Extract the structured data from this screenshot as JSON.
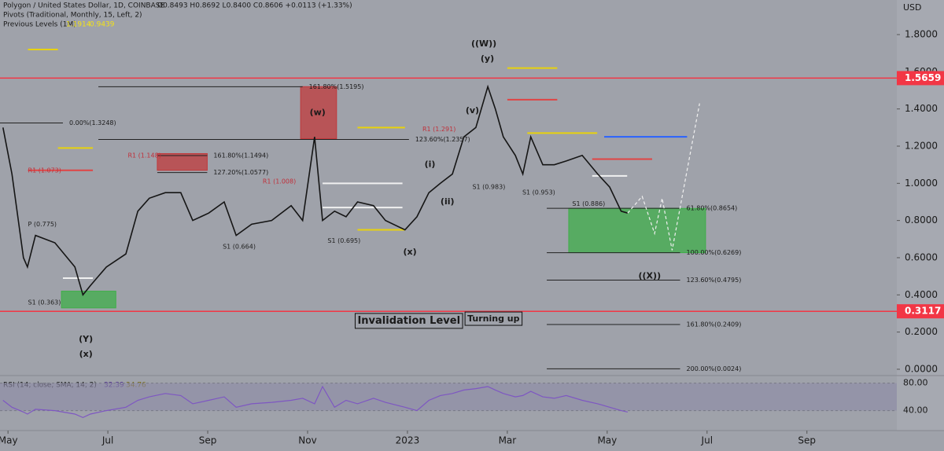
{
  "chart_data": {
    "type": "line",
    "title": "Polygon / United States Dollar, 1D, COINBASE",
    "ohlc": "O0.8493 H0.8692 L0.8400 C0.8606 +0.0113 (+1.33%)",
    "pivots_title": "Pivots (Traditional, Monthly, 15, Left, 2)",
    "prev_levels_title": "Previous Levels (1M)",
    "prev_levels_values": [
      1.1914,
      0.9439
    ],
    "y_axis_label": "USD",
    "xlim": [
      -0.16,
      17.8
    ],
    "xticks": [
      {
        "value": 0,
        "label": "May"
      },
      {
        "value": 2,
        "label": "Jul"
      },
      {
        "value": 4,
        "label": "Sep"
      },
      {
        "value": 6,
        "label": "Nov"
      },
      {
        "value": 8,
        "label": "2023"
      },
      {
        "value": 10,
        "label": "Mar"
      },
      {
        "value": 12,
        "label": "May"
      },
      {
        "value": 14,
        "label": "Jul"
      },
      {
        "value": 16,
        "label": "Sep"
      }
    ],
    "ylim": [
      -0.034,
      1.986
    ],
    "yticks": [
      {
        "value": 0,
        "label": "0.0000"
      },
      {
        "value": 0.2,
        "label": "0.2000"
      },
      {
        "value": 0.4,
        "label": "0.4000"
      },
      {
        "value": 0.6,
        "label": "0.6000"
      },
      {
        "value": 0.8,
        "label": "0.8000"
      },
      {
        "value": 1,
        "label": "1.0000"
      },
      {
        "value": 1.2,
        "label": "1.2000"
      },
      {
        "value": 1.4,
        "label": "1.4000"
      },
      {
        "value": 1.6,
        "label": "1.6000"
      },
      {
        "value": 1.8,
        "label": "1.8000"
      }
    ],
    "x": [
      -0.1,
      0.08,
      0.31,
      0.39,
      0.55,
      0.94,
      1.34,
      1.5,
      1.65,
      1.97,
      2.36,
      2.6,
      2.83,
      3.15,
      3.46,
      3.7,
      4.02,
      4.33,
      4.57,
      4.88,
      5.28,
      5.67,
      5.9,
      6.14,
      6.3,
      6.54,
      6.77,
      7.0,
      7.32,
      7.56,
      7.95,
      8.19,
      8.43,
      8.66,
      8.9,
      9.13,
      9.37,
      9.61,
      9.76,
      9.92,
      10.16,
      10.31,
      10.47,
      10.71,
      10.94,
      11.18,
      11.5,
      11.81,
      12.05,
      12.28,
      12.41
    ],
    "series": [
      {
        "color": "#151515",
        "values": [
          1.3,
          1.05,
          0.6,
          0.55,
          0.72,
          0.68,
          0.55,
          0.4,
          0.45,
          0.55,
          0.62,
          0.85,
          0.92,
          0.95,
          0.95,
          0.8,
          0.84,
          0.9,
          0.72,
          0.78,
          0.8,
          0.88,
          0.8,
          1.25,
          0.8,
          0.85,
          0.82,
          0.9,
          0.88,
          0.8,
          0.75,
          0.82,
          0.95,
          1.0,
          1.05,
          1.25,
          1.3,
          1.52,
          1.4,
          1.25,
          1.15,
          1.05,
          1.25,
          1.1,
          1.1,
          1.12,
          1.15,
          1.05,
          0.98,
          0.85,
          0.84
        ]
      }
    ],
    "projection": {
      "color": "#f0f0f0",
      "x": [
        12.41,
        12.7,
        12.95,
        13.1,
        13.3,
        13.85
      ],
      "values": [
        0.84,
        0.93,
        0.73,
        0.92,
        0.64,
        1.43
      ]
    },
    "price_markers": [
      {
        "value": 1.5659,
        "color": "#f23645"
      },
      {
        "value": 0.3117,
        "color": "#f23645"
      }
    ],
    "zones": [
      {
        "from": 5.86,
        "to": 6.58,
        "top": 1.52,
        "bottom": 1.24,
        "color": "#c0393b"
      },
      {
        "from": 11.23,
        "to": 13.97,
        "top": 0.865,
        "bottom": 0.627,
        "color": "#3fae49"
      },
      {
        "from": 1.07,
        "to": 2.16,
        "top": 0.42,
        "bottom": 0.33,
        "color": "#3fae49"
      },
      {
        "from": 2.99,
        "to": 3.99,
        "top": 1.16,
        "bottom": 1.07,
        "color": "#c0393b"
      }
    ],
    "levels": [
      {
        "label": "161.80%(1.5195)",
        "value": 1.5195,
        "from": 1.81,
        "to": 5.9
      },
      {
        "label": "123.60%(1.2357)",
        "value": 1.2357,
        "from": 1.81,
        "to": 8.03
      },
      {
        "label": "161.80%(1.1494)",
        "value": 1.1494,
        "from": 2.99,
        "to": 3.99
      },
      {
        "label": "127.20%(1.0577)",
        "value": 1.0577,
        "from": 2.99,
        "to": 3.99
      },
      {
        "label": "0.00%(1.3248)",
        "value": 1.3248,
        "from": -0.16,
        "to": 1.1
      },
      {
        "label": "61.80%(0.8654)",
        "value": 0.8654,
        "from": 10.79,
        "to": 13.46
      },
      {
        "label": "100.00%(0.6269)",
        "value": 0.6269,
        "from": 10.79,
        "to": 13.46
      },
      {
        "label": "123.60%(0.4795)",
        "value": 0.4795,
        "from": 10.79,
        "to": 13.46
      },
      {
        "label": "161.80%(0.2409)",
        "value": 0.2409,
        "from": 10.79,
        "to": 13.46
      },
      {
        "label": "200.00%(0.0024)",
        "value": 0.0024,
        "from": 10.79,
        "to": 13.46
      }
    ],
    "pivot_lines": [
      {
        "value": 1.72,
        "from": 0.4,
        "to": 1.0,
        "color": "#e8d20c"
      },
      {
        "value": 1.19,
        "from": 1.0,
        "to": 1.7,
        "color": "#e8d20c"
      },
      {
        "value": 1.07,
        "from": 0.4,
        "to": 1.7,
        "color": "#e04444"
      },
      {
        "value": 0.49,
        "from": 1.1,
        "to": 1.7,
        "color": "#f0f0f0"
      },
      {
        "value": 0.87,
        "from": 6.3,
        "to": 7.9,
        "color": "#f0f0f0"
      },
      {
        "value": 1.0,
        "from": 6.3,
        "to": 7.9,
        "color": "#f0f0f0"
      },
      {
        "value": 1.3,
        "from": 7.0,
        "to": 7.95,
        "color": "#e8d20c"
      },
      {
        "value": 0.75,
        "from": 7.0,
        "to": 7.95,
        "color": "#e8d20c"
      },
      {
        "value": 1.27,
        "from": 10.4,
        "to": 11.8,
        "color": "#e8d20c"
      },
      {
        "value": 1.13,
        "from": 11.7,
        "to": 12.9,
        "color": "#e04444"
      },
      {
        "value": 1.04,
        "from": 11.7,
        "to": 12.4,
        "color": "#f0f0f0"
      },
      {
        "value": 1.25,
        "from": 11.94,
        "to": 13.6,
        "color": "#2962ff"
      },
      {
        "value": 1.62,
        "from": 10.0,
        "to": 11.0,
        "color": "#e8d20c"
      },
      {
        "value": 1.45,
        "from": 10.0,
        "to": 11.0,
        "color": "#e04444"
      }
    ],
    "pivot_labels": [
      {
        "text": "S1 (0.363)",
        "x": 0.4,
        "y": 0.36,
        "color": "#222"
      },
      {
        "text": "P (0.775)",
        "x": 0.4,
        "y": 0.78,
        "color": "#222"
      },
      {
        "text": "R1 (1.073)",
        "x": 0.4,
        "y": 1.07,
        "color": "#c0303a"
      },
      {
        "text": "R1 (1.148)",
        "x": 2.4,
        "y": 1.15,
        "color": "#c0303a"
      },
      {
        "text": "S1 (0.664)",
        "x": 4.3,
        "y": 0.66,
        "color": "#222"
      },
      {
        "text": "S1 (0.695)",
        "x": 6.4,
        "y": 0.69,
        "color": "#222"
      },
      {
        "text": "R1 (1.008)",
        "x": 5.1,
        "y": 1.01,
        "color": "#c0303a"
      },
      {
        "text": "R1 (1.291)",
        "x": 8.3,
        "y": 1.29,
        "color": "#c0303a"
      },
      {
        "text": "S1 (0.983)",
        "x": 9.3,
        "y": 0.98,
        "color": "#222"
      },
      {
        "text": "S1 (0.953)",
        "x": 10.3,
        "y": 0.95,
        "color": "#222"
      },
      {
        "text": "S1 (0.886)",
        "x": 11.3,
        "y": 0.89,
        "color": "#222"
      }
    ],
    "wave_labels": [
      {
        "text": "((W))",
        "x": 9.53,
        "y": 1.75
      },
      {
        "text": "(y)",
        "x": 9.6,
        "y": 1.67
      },
      {
        "text": "(w)",
        "x": 6.2,
        "y": 1.38
      },
      {
        "text": "(Y)",
        "x": 1.56,
        "y": 0.16
      },
      {
        "text": "(x)",
        "x": 1.56,
        "y": 0.08
      },
      {
        "text": "(x)",
        "x": 8.05,
        "y": 0.63
      },
      {
        "text": "((X))",
        "x": 12.85,
        "y": 0.5
      },
      {
        "text": "(i)",
        "x": 8.45,
        "y": 1.1
      },
      {
        "text": "(v)",
        "x": 9.3,
        "y": 1.39
      },
      {
        "text": "(ii)",
        "x": 8.8,
        "y": 0.9
      }
    ],
    "notes": [
      {
        "text": "Invalidation Level",
        "x": 7.0,
        "y": 0.26,
        "size": 13
      },
      {
        "text": "Turning up",
        "x": 9.2,
        "y": 0.27,
        "size": 11
      }
    ],
    "rsi": {
      "title": "RSI (14, close, SMA, 14, 2)",
      "last": 32.39,
      "sma_last": 34.76,
      "color": "#7e57c2",
      "ylim": [
        11,
        91
      ],
      "yticks": [
        {
          "value": 40,
          "label": "40.00"
        },
        {
          "value": 80,
          "label": "80.00"
        }
      ],
      "values": [
        55,
        45,
        38,
        35,
        42,
        40,
        35,
        30,
        35,
        40,
        45,
        55,
        60,
        65,
        62,
        50,
        55,
        60,
        45,
        50,
        52,
        55,
        58,
        50,
        75,
        45,
        55,
        50,
        58,
        52,
        45,
        40,
        55,
        62,
        65,
        70,
        72,
        75,
        70,
        65,
        60,
        62,
        68,
        60,
        58,
        62,
        55,
        50,
        45,
        40,
        38
      ]
    }
  }
}
